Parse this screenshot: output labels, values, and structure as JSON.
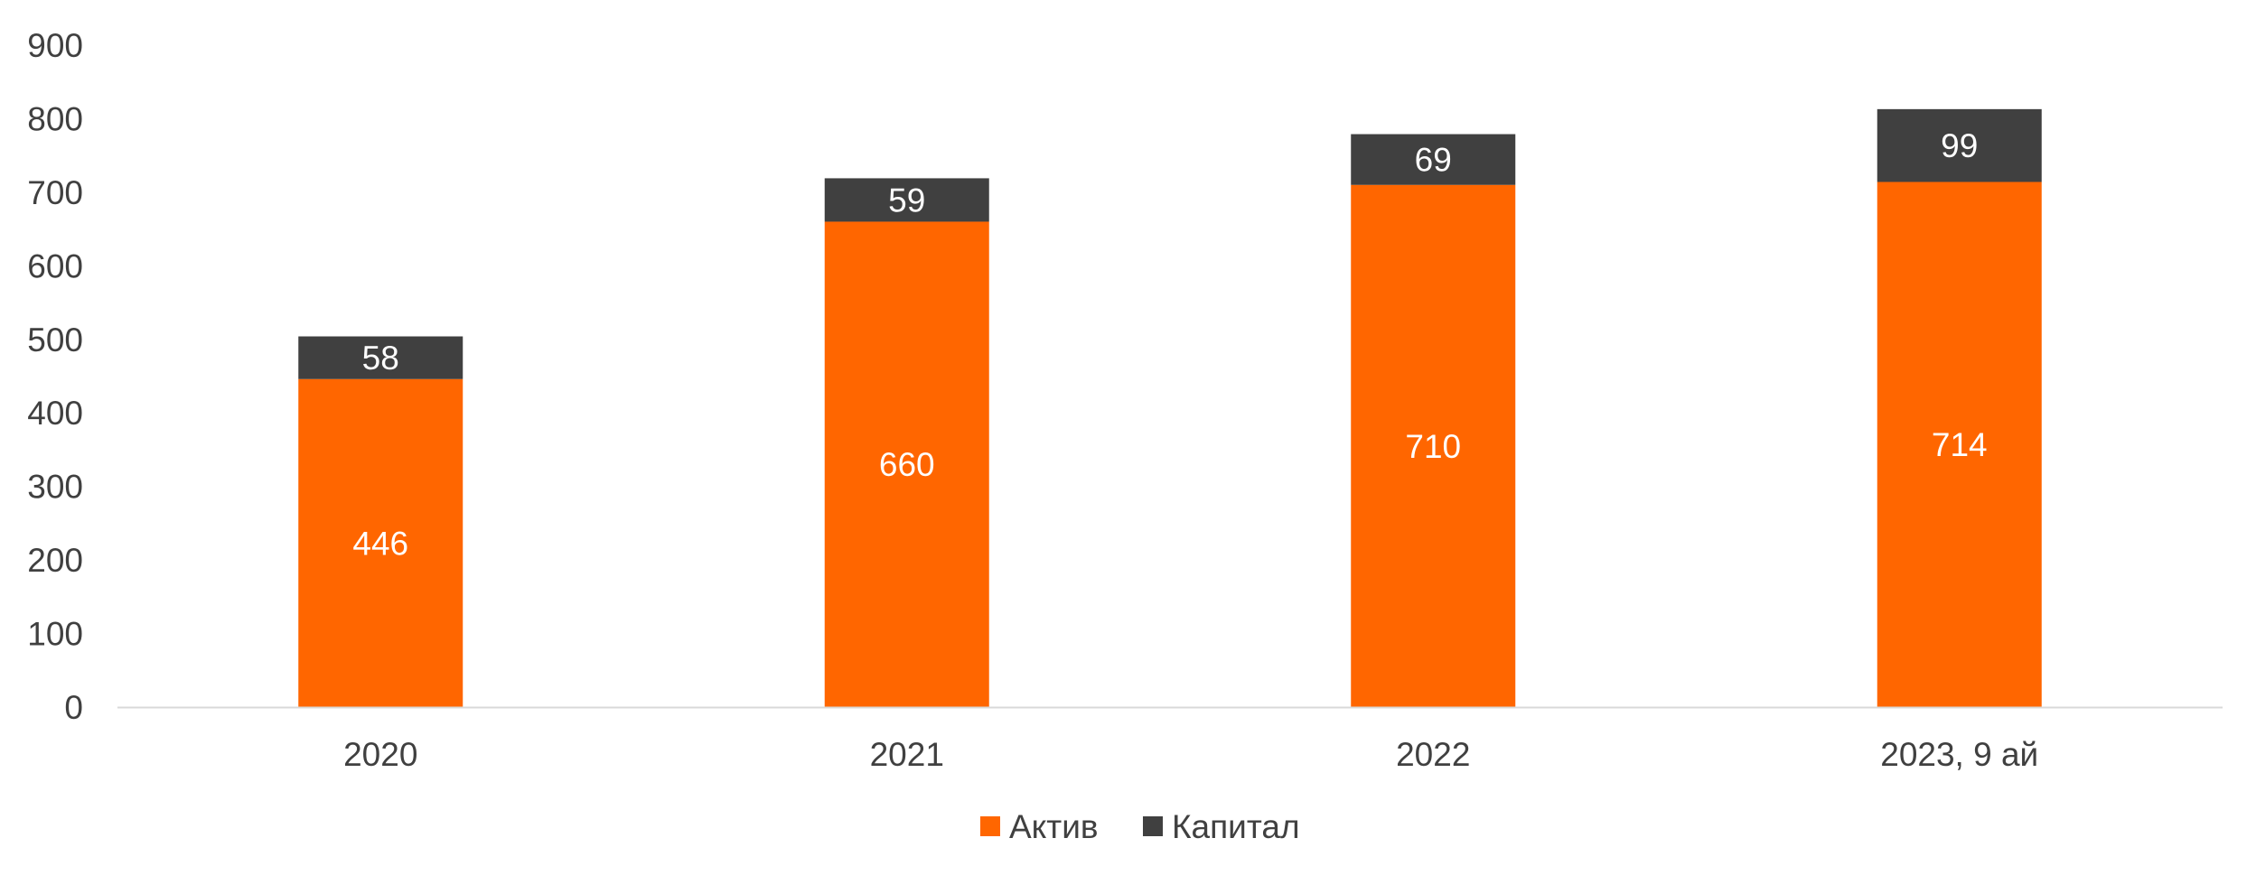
{
  "chart_data": {
    "type": "bar",
    "stacked": true,
    "categories": [
      "2020",
      "2021",
      "2022",
      "2023, 9 ай"
    ],
    "series": [
      {
        "name": "Актив",
        "values": [
          446,
          660,
          710,
          714
        ],
        "color": "#FF6600"
      },
      {
        "name": "Капитал",
        "values": [
          58,
          59,
          69,
          99
        ],
        "color": "#404040"
      }
    ],
    "ylim": [
      0,
      900
    ],
    "yticks": [
      0,
      100,
      200,
      300,
      400,
      500,
      600,
      700,
      800,
      900
    ],
    "grid": false,
    "legend_position": "bottom",
    "title": "",
    "xlabel": "",
    "ylabel": ""
  }
}
